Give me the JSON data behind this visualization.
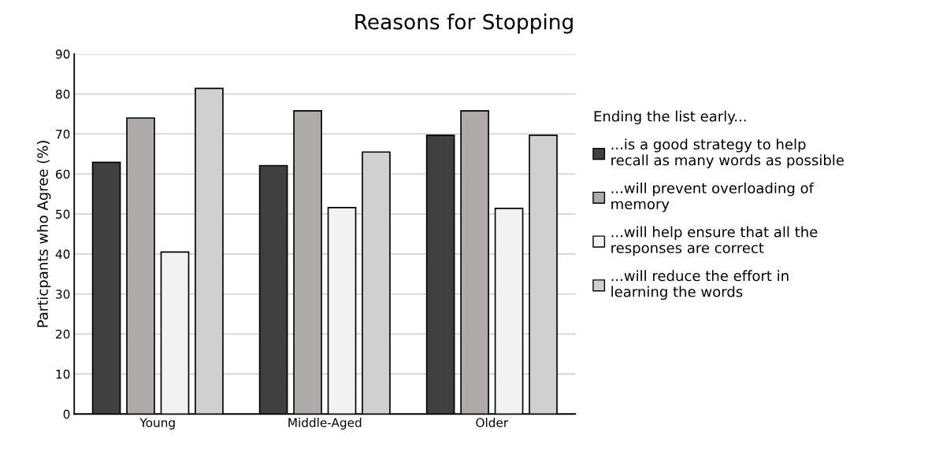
{
  "chart_data": {
    "type": "bar",
    "title": "Reasons for Stopping",
    "ylabel": "Particpants who Agree (%)",
    "legend_title": "Ending the list early...",
    "categories": [
      "Young",
      "Middle-Aged",
      "Older"
    ],
    "series": [
      {
        "name": "...is a good strategy to help recall as many words as possible",
        "color": "#404040",
        "values": [
          62.9,
          62.1,
          69.7
        ]
      },
      {
        "name": "...will prevent overloading of memory",
        "color": "#afabab",
        "values": [
          74.0,
          75.8,
          75.8
        ]
      },
      {
        "name": "...will help ensure that all the responses are correct",
        "color": "#f2f2f2",
        "values": [
          40.5,
          51.6,
          51.4
        ]
      },
      {
        "name": "...will reduce the effort in learning the words",
        "color": "#d0d0d0",
        "values": [
          81.4,
          65.5,
          69.7
        ]
      }
    ],
    "ylim": [
      0,
      90
    ],
    "yticks": [
      0,
      10,
      20,
      30,
      40,
      50,
      60,
      70,
      80,
      90
    ],
    "grid": "y",
    "legend": "right"
  }
}
